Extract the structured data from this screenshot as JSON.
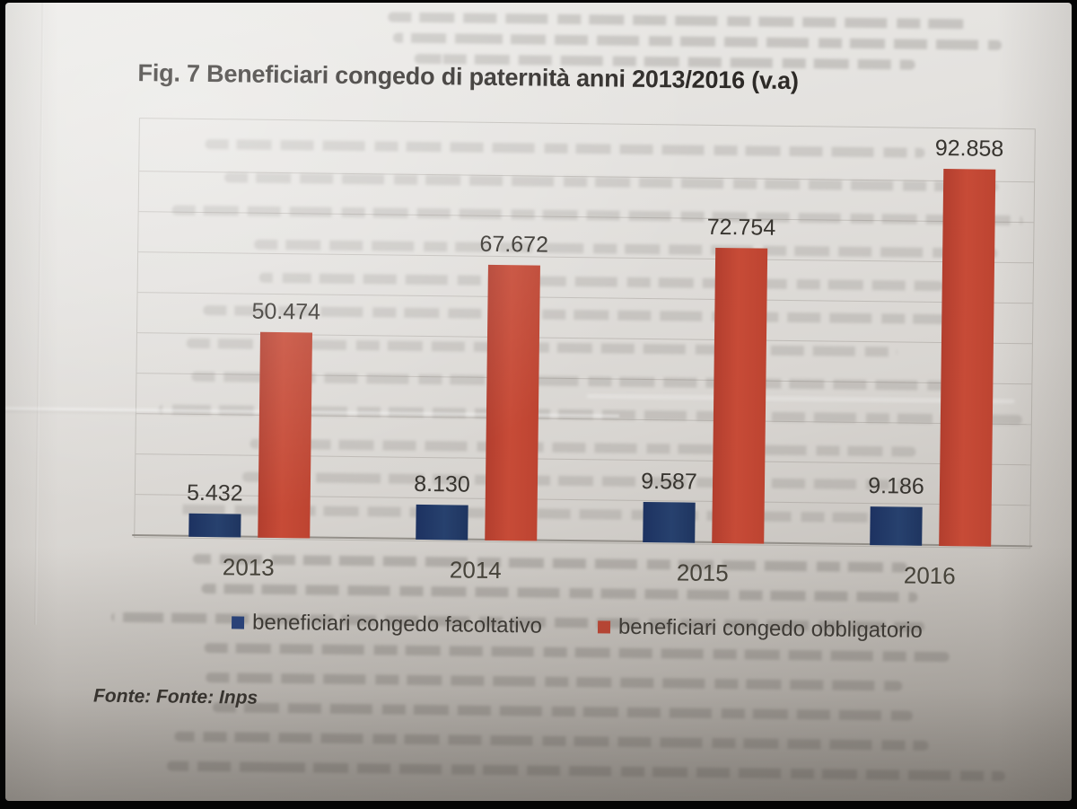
{
  "figure": {
    "title": "Fig. 7 Beneficiari congedo di paternità anni 2013/2016 (v.a)",
    "source_note": "Fonte: Fonte: Inps"
  },
  "chart_data": {
    "type": "bar",
    "title": "Fig. 7 Beneficiari congedo di paternità anni 2013/2016 (v.a)",
    "categories": [
      "2013",
      "2014",
      "2015",
      "2016"
    ],
    "series": [
      {
        "name": "beneficiari congedo facoltativo",
        "color": "#24407c",
        "values": [
          5432,
          8130,
          9587,
          9186
        ],
        "value_labels": [
          "5.432",
          "8.130",
          "9.587",
          "9.186"
        ]
      },
      {
        "name": "beneficiari congedo obbligatorio",
        "color": "#bf4331",
        "values": [
          50474,
          67672,
          72754,
          92858
        ],
        "value_labels": [
          "50.474",
          "67.672",
          "72.754",
          "92.858"
        ]
      }
    ],
    "xlabel": "",
    "ylabel": "",
    "ylim": [
      0,
      100000
    ],
    "grid": true,
    "gridline_step": 10000,
    "y_axis_ticks_visible": false,
    "value_labels_visible": true,
    "legend_position": "bottom"
  },
  "colors": {
    "bar_blue": "#24407c",
    "bar_red": "#bf4331",
    "paper": "#ddd9d5",
    "text_dark": "#2d2a27"
  }
}
